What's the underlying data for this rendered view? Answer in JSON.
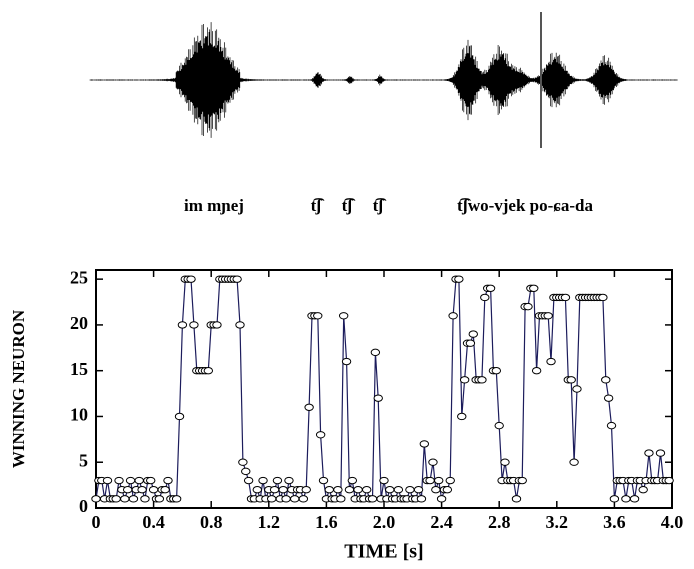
{
  "chart_data": {
    "type": "line",
    "phonetic_labels": [
      "im mɲej",
      "t͡ʃ",
      "t͡ʃ",
      "t͡ʃ",
      "t͡ʃwo-vjek po-ɕa-da"
    ],
    "xlabel": "TIME [s]",
    "ylabel": "WINNING NEURON",
    "color": "#1c1c5c",
    "marker_fill": "#ffffff",
    "xlim": [
      0,
      4.0
    ],
    "ylim": [
      0,
      26
    ],
    "xticks": [
      0,
      0.4,
      0.8,
      1.2,
      1.6,
      {
        "value": 2,
        "label": "2.0"
      },
      2.4,
      2.8,
      3.2,
      3.6,
      {
        "value": 4,
        "label": "4.0"
      }
    ],
    "yticks": [
      0,
      5,
      10,
      15,
      20,
      25
    ],
    "x": [
      0,
      0.02,
      0.04,
      0.06,
      0.08,
      0.1,
      0.12,
      0.14,
      0.16,
      0.18,
      0.2,
      0.22,
      0.24,
      0.26,
      0.28,
      0.3,
      0.32,
      0.34,
      0.36,
      0.38,
      0.4,
      0.42,
      0.44,
      0.46,
      0.48,
      0.5,
      0.52,
      0.54,
      0.56,
      0.58,
      0.6,
      0.62,
      0.64,
      0.66,
      0.68,
      0.7,
      0.72,
      0.74,
      0.76,
      0.78,
      0.8,
      0.82,
      0.84,
      0.86,
      0.88,
      0.9,
      0.92,
      0.94,
      0.96,
      0.98,
      1,
      1.02,
      1.04,
      1.06,
      1.08,
      1.1,
      1.12,
      1.14,
      1.16,
      1.18,
      1.2,
      1.22,
      1.24,
      1.26,
      1.28,
      1.3,
      1.32,
      1.34,
      1.36,
      1.38,
      1.4,
      1.42,
      1.44,
      1.46,
      1.48,
      1.5,
      1.52,
      1.54,
      1.56,
      1.58,
      1.6,
      1.62,
      1.64,
      1.66,
      1.68,
      1.7,
      1.72,
      1.74,
      1.76,
      1.78,
      1.8,
      1.82,
      1.84,
      1.86,
      1.88,
      1.9,
      1.92,
      1.94,
      1.96,
      1.98,
      2,
      2.02,
      2.04,
      2.06,
      2.08,
      2.1,
      2.12,
      2.14,
      2.16,
      2.18,
      2.2,
      2.22,
      2.24,
      2.26,
      2.28,
      2.3,
      2.32,
      2.34,
      2.36,
      2.38,
      2.4,
      2.42,
      2.44,
      2.46,
      2.48,
      2.5,
      2.52,
      2.54,
      2.56,
      2.58,
      2.6,
      2.62,
      2.64,
      2.66,
      2.68,
      2.7,
      2.72,
      2.74,
      2.76,
      2.78,
      2.8,
      2.82,
      2.84,
      2.86,
      2.88,
      2.9,
      2.92,
      2.94,
      2.96,
      2.98,
      3,
      3.02,
      3.04,
      3.06,
      3.08,
      3.1,
      3.12,
      3.14,
      3.16,
      3.18,
      3.2,
      3.22,
      3.24,
      3.26,
      3.28,
      3.3,
      3.32,
      3.34,
      3.36,
      3.38,
      3.4,
      3.42,
      3.44,
      3.46,
      3.48,
      3.5,
      3.52,
      3.54,
      3.56,
      3.58,
      3.6,
      3.62,
      3.64,
      3.66,
      3.68,
      3.7,
      3.72,
      3.74,
      3.76,
      3.78,
      3.8,
      3.82,
      3.84,
      3.86,
      3.88,
      3.9,
      3.92,
      3.94,
      3.96,
      3.98
    ],
    "values": [
      1,
      3,
      3,
      1,
      3,
      1,
      1,
      1,
      3,
      2,
      1,
      2,
      3,
      1,
      2,
      3,
      2,
      1,
      3,
      3,
      2,
      1,
      1,
      2,
      2,
      3,
      1,
      1,
      1,
      10,
      20,
      25,
      25,
      25,
      20,
      15,
      15,
      15,
      15,
      15,
      20,
      20,
      20,
      25,
      25,
      25,
      25,
      25,
      25,
      25,
      20,
      5,
      4,
      3,
      1,
      1,
      2,
      1,
      3,
      1,
      2,
      1,
      2,
      3,
      1,
      2,
      1,
      3,
      2,
      1,
      2,
      2,
      1,
      2,
      11,
      21,
      21,
      21,
      8,
      3,
      1,
      2,
      1,
      1,
      2,
      1,
      21,
      16,
      2,
      3,
      1,
      2,
      1,
      1,
      2,
      1,
      1,
      17,
      12,
      1,
      3,
      1,
      2,
      1,
      1,
      2,
      1,
      1,
      1,
      2,
      1,
      1,
      2,
      1,
      7,
      3,
      3,
      5,
      2,
      3,
      1,
      2,
      2,
      3,
      21,
      25,
      25,
      10,
      14,
      18,
      18,
      19,
      14,
      14,
      14,
      23,
      24,
      24,
      15,
      15,
      9,
      3,
      5,
      3,
      3,
      3,
      1,
      3,
      3,
      22,
      22,
      24,
      24,
      15,
      21,
      21,
      21,
      21,
      16,
      23,
      23,
      23,
      23,
      23,
      14,
      14,
      5,
      13,
      23,
      23,
      23,
      23,
      23,
      23,
      23,
      23,
      23,
      14,
      12,
      9,
      1,
      3,
      3,
      3,
      1,
      3,
      3,
      1,
      3,
      3,
      2,
      3,
      6,
      3,
      3,
      3,
      6,
      3,
      3,
      3
    ]
  }
}
